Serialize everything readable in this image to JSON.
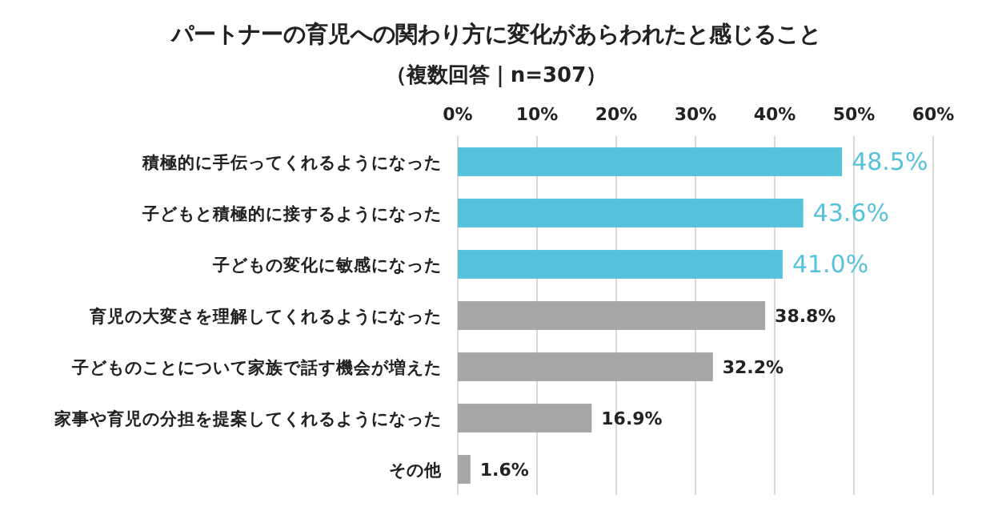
{
  "chart_data": {
    "type": "bar",
    "orientation": "horizontal",
    "title": "パートナーの育児への関わり方に変化があらわれたと感じること",
    "subtitle": "（複数回答｜n=307）",
    "categories": [
      "積極的に手伝ってくれるようになった",
      "子どもと積極的に接するようになった",
      "子どもの変化に敏感になった",
      "育児の大変さを理解してくれるようになった",
      "子どものことについて家族で話す機会が増えた",
      "家事や育児の分担を提案してくれるようになった",
      "その他"
    ],
    "values": [
      48.5,
      43.6,
      41.0,
      38.8,
      32.2,
      16.9,
      1.6
    ],
    "value_labels": [
      "48.5%",
      "43.6%",
      "41.0%",
      "38.8%",
      "32.2%",
      "16.9%",
      "1.6%"
    ],
    "colors": [
      "#56c1da",
      "#56c1da",
      "#56c1da",
      "#a6a6a6",
      "#a6a6a6",
      "#a6a6a6",
      "#a6a6a6"
    ],
    "xlim": [
      0,
      60
    ],
    "xticks": [
      {
        "value": 0,
        "label": "0%"
      },
      {
        "value": 10,
        "label": "10%"
      },
      {
        "value": 20,
        "label": "20%"
      },
      {
        "value": 30,
        "label": "30%"
      },
      {
        "value": 40,
        "label": "40%"
      },
      {
        "value": 50,
        "label": "50%"
      },
      {
        "value": 60,
        "label": "60%"
      }
    ],
    "grid": "x"
  }
}
